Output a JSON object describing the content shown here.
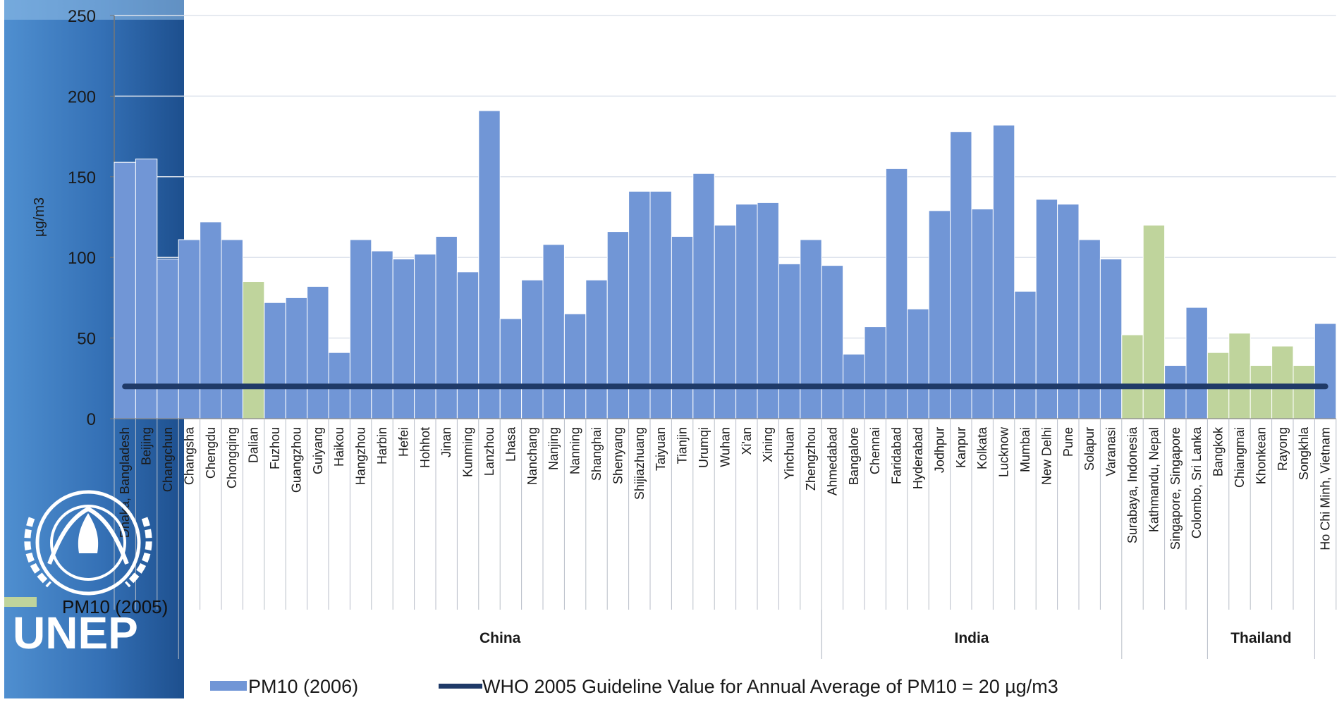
{
  "logo": {
    "text": "UNEP"
  },
  "legend": {
    "items": [
      {
        "label": "PM10 (2006)",
        "color": "#7196d6",
        "kind": "box"
      },
      {
        "label": "WHO 2005 Guideline Value for Annual Average of PM10 = 20 µg/m3",
        "color": "#1f3a68",
        "kind": "line"
      }
    ],
    "overlay_item": {
      "label": "PM10 (2005)",
      "color": "#bfd49c",
      "kind": "box"
    }
  },
  "chart_data": {
    "type": "bar",
    "ylabel": "µg/m3",
    "ylim": [
      0,
      250
    ],
    "yticks": [
      0,
      50,
      100,
      150,
      200,
      250
    ],
    "grid": true,
    "colors": {
      "pm10_2006": "#7196d6",
      "pm10_2005": "#bfd49c",
      "who_line": "#1f3a68",
      "grid": "#dde3ec"
    },
    "categories": [
      "Dhaka, Bangladesh",
      "Beijing",
      "Changchun",
      "Changsha",
      "Chengdu",
      "Chongqing",
      "Dalian",
      "Fuzhou",
      "Guangzhou",
      "Guiyang",
      "Haikou",
      "Hangzhou",
      "Harbin",
      "Hefei",
      "Hohhot",
      "Jinan",
      "Kunming",
      "Lanzhou",
      "Lhasa",
      "Nanchang",
      "Nanjing",
      "Nanning",
      "Shanghai",
      "Shenyang",
      "Shijiazhuang",
      "Taiyuan",
      "Tianjin",
      "Urumqi",
      "Wuhan",
      "Xi'an",
      "Xining",
      "Yinchuan",
      "Zhengzhou",
      "Ahmedabad",
      "Bangalore",
      "Chennai",
      "Faridabad",
      "Hyderabad",
      "Jodhpur",
      "Kanpur",
      "Kolkata",
      "Lucknow",
      "Mumbai",
      "New Delhi",
      "Pune",
      "Solapur",
      "Varanasi",
      "Surabaya, Indonesia",
      "Kathmandu, Nepal",
      "Singapore, Singapore",
      "Colombo, Sri Lanka",
      "Bangkok",
      "Chiangmai",
      "Khonkean",
      "Rayong",
      "Songkhla",
      "Ho Chi Minh, Vietnam"
    ],
    "values": [
      159,
      161,
      99,
      111,
      122,
      111,
      85,
      72,
      75,
      82,
      41,
      111,
      104,
      99,
      102,
      113,
      91,
      191,
      62,
      86,
      108,
      65,
      86,
      116,
      141,
      141,
      113,
      152,
      120,
      133,
      134,
      96,
      111,
      95,
      40,
      57,
      155,
      68,
      129,
      178,
      130,
      182,
      79,
      136,
      133,
      111,
      99,
      52,
      120,
      33,
      69,
      41,
      53,
      33,
      45,
      33,
      59
    ],
    "year_2005": [
      "Dalian",
      "Surabaya, Indonesia",
      "Kathmandu, Nepal",
      "Bangkok",
      "Chiangmai",
      "Khonkean",
      "Rayong",
      "Songkhla"
    ],
    "groups": [
      {
        "label": "China",
        "start": 3,
        "end": 32
      },
      {
        "label": "India",
        "start": 33,
        "end": 46
      },
      {
        "label": "Thailand",
        "start": 51,
        "end": 55
      }
    ],
    "who_guideline": {
      "value": 20,
      "label": "WHO 2005 Guideline Value for Annual Average of PM10 = 20 µg/m3"
    },
    "series": [
      {
        "name": "PM10 (2006)"
      },
      {
        "name": "PM10 (2005)"
      }
    ]
  }
}
